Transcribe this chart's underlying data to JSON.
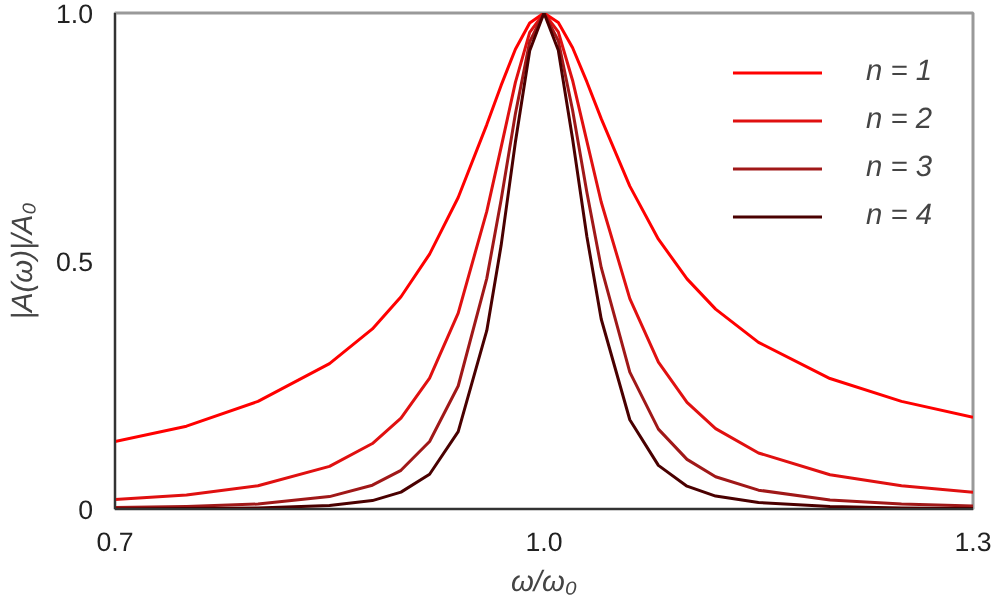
{
  "chart_data": {
    "type": "line",
    "xlabel": "ω/ω₀",
    "ylabel": "|A(ω)|/A₀",
    "x": [
      0.7,
      0.75,
      0.8,
      0.85,
      0.88,
      0.9,
      0.92,
      0.94,
      0.96,
      0.97,
      0.98,
      0.99,
      1.0,
      1.01,
      1.02,
      1.03,
      1.04,
      1.06,
      1.08,
      1.1,
      1.12,
      1.15,
      1.2,
      1.25,
      1.3
    ],
    "series": [
      {
        "name": "n = 1",
        "color": "#ff0000",
        "values": [
          0.136,
          0.167,
          0.217,
          0.293,
          0.363,
          0.428,
          0.514,
          0.628,
          0.775,
          0.854,
          0.927,
          0.98,
          1.0,
          0.981,
          0.93,
          0.861,
          0.787,
          0.651,
          0.544,
          0.464,
          0.403,
          0.336,
          0.263,
          0.217,
          0.185
        ]
      },
      {
        "name": "n = 2",
        "color": "#e01010",
        "values": [
          0.019,
          0.028,
          0.047,
          0.086,
          0.132,
          0.183,
          0.264,
          0.395,
          0.6,
          0.729,
          0.86,
          0.961,
          1.0,
          0.962,
          0.864,
          0.741,
          0.619,
          0.424,
          0.296,
          0.215,
          0.162,
          0.113,
          0.069,
          0.047,
          0.034
        ]
      },
      {
        "name": "n = 3",
        "color": "#a01818",
        "values": [
          0.003,
          0.005,
          0.01,
          0.025,
          0.048,
          0.078,
          0.136,
          0.248,
          0.465,
          0.623,
          0.797,
          0.942,
          1.0,
          0.944,
          0.804,
          0.638,
          0.487,
          0.276,
          0.161,
          0.1,
          0.065,
          0.038,
          0.018,
          0.01,
          0.006
        ]
      },
      {
        "name": "n = 4",
        "color": "#4a0000",
        "values": [
          0.0,
          0.001,
          0.002,
          0.007,
          0.017,
          0.034,
          0.07,
          0.156,
          0.36,
          0.531,
          0.74,
          0.924,
          1.0,
          0.925,
          0.746,
          0.549,
          0.383,
          0.18,
          0.088,
          0.046,
          0.026,
          0.013,
          0.005,
          0.002,
          0.001
        ]
      }
    ],
    "xlim": [
      0.7,
      1.3
    ],
    "ylim": [
      0,
      1
    ],
    "xticks": [
      0.7,
      {
        "value": 1,
        "label": "1.0"
      },
      1.3
    ],
    "yticks": [
      0,
      0.5,
      {
        "value": 1,
        "label": "1.0"
      }
    ],
    "legend": "top right",
    "line_style": "solid"
  }
}
